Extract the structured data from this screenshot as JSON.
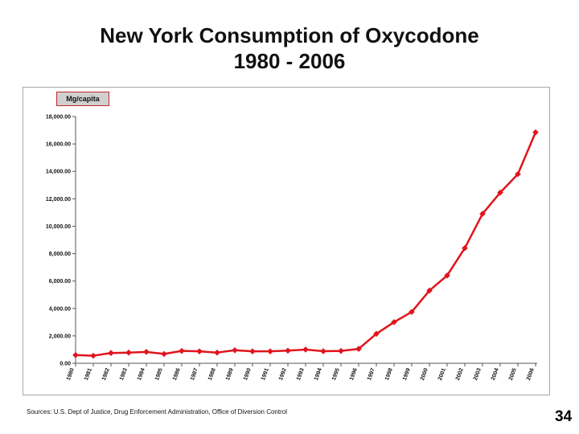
{
  "slide": {
    "title_line1": "New York Consumption of Oxycodone",
    "title_line2": "1980 - 2006",
    "source": "Sources: U.S. Dept of Justice, Drug Enforcement Administration, Office of Diversion Control",
    "page_number": "34"
  },
  "chart_data": {
    "type": "line",
    "title": "New York Consumption of Oxycodone 1980 - 2006",
    "ylabel": "Mg/capita",
    "xlabel": "",
    "ylim": [
      0,
      18000
    ],
    "y_ticks": [
      "0.00",
      "2,000.00",
      "4,000.00",
      "6,000.00",
      "8,000.00",
      "10,000.00",
      "12,000.00",
      "14,000.00",
      "16,000.00",
      "18,000.00"
    ],
    "categories": [
      "1980",
      "1981",
      "1982",
      "1983",
      "1984",
      "1985",
      "1986",
      "1987",
      "1988",
      "1989",
      "1990",
      "1991",
      "1992",
      "1993",
      "1994",
      "1995",
      "1996",
      "1997",
      "1998",
      "1999",
      "2000",
      "2001",
      "2002",
      "2003",
      "2004",
      "2005",
      "2006"
    ],
    "series": [
      {
        "values": [
          600,
          550,
          750,
          780,
          830,
          680,
          900,
          870,
          780,
          950,
          870,
          870,
          920,
          1000,
          880,
          900,
          1050,
          2150,
          3000,
          3750,
          5300,
          6400,
          8400,
          10900,
          12450,
          13800,
          16850
        ],
        "color": "#e0141c",
        "marker": "diamond"
      }
    ],
    "grid": false,
    "legend": "none"
  }
}
